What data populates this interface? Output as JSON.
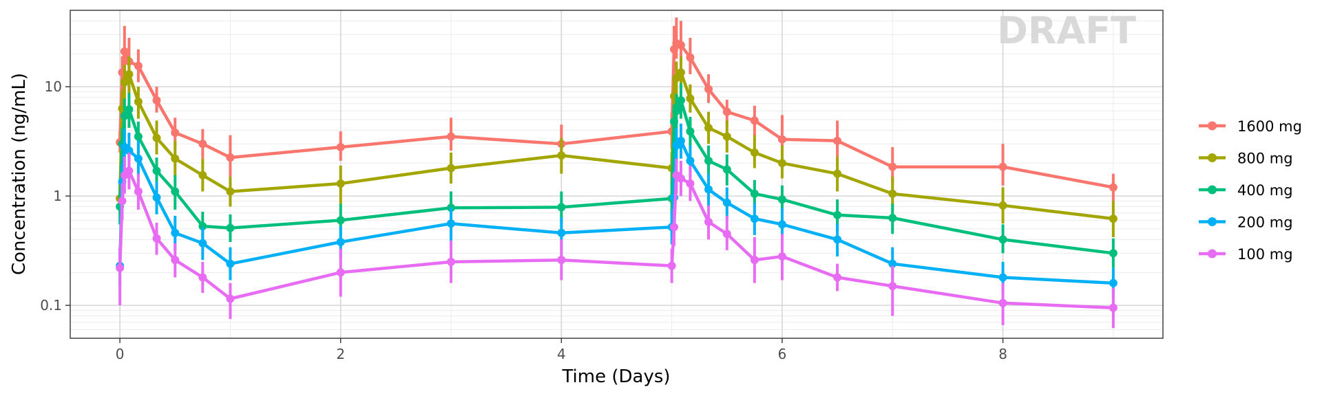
{
  "chart_data": {
    "type": "line",
    "xlabel": "Time (Days)",
    "ylabel": "Concentration (ng/mL)",
    "watermark": "DRAFT",
    "xlim": [
      -0.45,
      9.45
    ],
    "ylim": [
      0.05,
      50
    ],
    "yscale": "log",
    "x_ticks": [
      0,
      2,
      4,
      6,
      8
    ],
    "x_tick_labels": [
      "0",
      "2",
      "4",
      "6",
      "8"
    ],
    "y_ticks": [
      0.1,
      1,
      10
    ],
    "y_tick_labels": [
      "0.1",
      "1",
      "10"
    ],
    "grid": true,
    "legend_position": "right",
    "x": [
      0,
      0.021,
      0.042,
      0.083,
      0.167,
      0.333,
      0.5,
      0.75,
      1,
      2,
      3,
      4,
      5,
      5.021,
      5.042,
      5.083,
      5.167,
      5.333,
      5.5,
      5.75,
      6,
      6.5,
      7,
      8,
      9
    ],
    "series": [
      {
        "name": "1600 mg",
        "color": "#F8766D",
        "values": [
          3.1,
          13.5,
          21,
          17,
          15.5,
          7.5,
          3.8,
          3.0,
          2.25,
          2.8,
          3.5,
          3.0,
          3.9,
          22,
          25,
          24,
          18.5,
          9.5,
          5.9,
          4.9,
          3.3,
          3.2,
          1.85,
          1.85,
          1.2
        ],
        "err_low": [
          2.5,
          9,
          14,
          11,
          11,
          5.8,
          2.8,
          2.2,
          1.5,
          2.1,
          2.6,
          2.3,
          2.7,
          14,
          18,
          16,
          13,
          7.1,
          4.5,
          3.5,
          2.4,
          2.3,
          1.3,
          1.25,
          0.9
        ],
        "err_high": [
          3.9,
          19,
          36,
          28,
          22,
          10,
          5.2,
          4.1,
          3.6,
          3.9,
          5.2,
          4.5,
          5.8,
          36,
          43,
          40,
          28,
          13,
          7.6,
          6.7,
          5.5,
          4.9,
          2.8,
          3.0,
          1.6
        ]
      },
      {
        "name": "800 mg",
        "color": "#A3A500",
        "values": [
          0.95,
          6.3,
          11,
          13,
          7.3,
          3.4,
          2.2,
          1.55,
          1.1,
          1.3,
          1.8,
          2.35,
          1.8,
          8.2,
          12,
          13.5,
          7.8,
          4.2,
          3.5,
          2.5,
          2.0,
          1.6,
          1.05,
          0.82,
          0.62
        ],
        "err_low": [
          0.7,
          4.3,
          7.5,
          8.7,
          5.1,
          2.4,
          1.5,
          1.1,
          0.8,
          0.85,
          1.3,
          1.6,
          1.3,
          5.7,
          8.2,
          9.4,
          5.8,
          3.0,
          2.5,
          1.8,
          1.45,
          1.1,
          0.75,
          0.56,
          0.42
        ],
        "err_high": [
          1.3,
          9.2,
          16,
          19,
          10,
          4.9,
          3.2,
          2.2,
          1.5,
          1.9,
          2.5,
          3.4,
          2.5,
          12,
          17,
          19,
          10.5,
          5.9,
          4.9,
          3.6,
          2.9,
          2.3,
          1.5,
          1.2,
          0.9
        ]
      },
      {
        "name": "400 mg",
        "color": "#00BF7D",
        "values": [
          0.8,
          3.0,
          5.4,
          6.2,
          3.5,
          1.7,
          1.1,
          0.53,
          0.51,
          0.6,
          0.78,
          0.79,
          0.95,
          4.8,
          6.0,
          7.5,
          3.9,
          2.1,
          1.75,
          1.05,
          0.93,
          0.67,
          0.63,
          0.4,
          0.3
        ],
        "err_low": [
          0.55,
          2.0,
          3.7,
          4.2,
          2.4,
          1.25,
          0.75,
          0.38,
          0.38,
          0.43,
          0.56,
          0.55,
          0.66,
          3.3,
          4.1,
          5.1,
          2.8,
          1.5,
          1.25,
          0.78,
          0.7,
          0.48,
          0.45,
          0.3,
          0.22
        ],
        "err_high": [
          1.1,
          4.2,
          7.8,
          8.8,
          4.8,
          2.25,
          1.55,
          0.72,
          0.68,
          0.85,
          1.1,
          1.1,
          1.35,
          6.9,
          8.6,
          10.8,
          5.3,
          2.9,
          2.4,
          1.4,
          1.25,
          0.93,
          0.85,
          0.55,
          0.41
        ]
      },
      {
        "name": "200 mg",
        "color": "#00B0F6",
        "values": [
          0.23,
          1.35,
          2.8,
          2.6,
          2.2,
          0.97,
          0.46,
          0.37,
          0.24,
          0.38,
          0.56,
          0.46,
          0.52,
          0.97,
          2.9,
          3.2,
          2.1,
          1.15,
          0.87,
          0.62,
          0.55,
          0.4,
          0.24,
          0.18,
          0.16
        ],
        "err_low": [
          0.15,
          0.9,
          1.9,
          1.8,
          1.5,
          0.68,
          0.32,
          0.26,
          0.17,
          0.27,
          0.39,
          0.32,
          0.36,
          0.6,
          2.0,
          2.2,
          1.5,
          0.8,
          0.62,
          0.44,
          0.39,
          0.28,
          0.17,
          0.13,
          0.115
        ],
        "err_high": [
          0.33,
          1.95,
          4.1,
          3.8,
          3.2,
          1.35,
          0.66,
          0.52,
          0.34,
          0.53,
          0.79,
          0.64,
          0.74,
          1.5,
          4.2,
          4.6,
          2.9,
          1.6,
          1.2,
          0.86,
          0.78,
          0.56,
          0.34,
          0.25,
          0.22
        ]
      },
      {
        "name": "100 mg",
        "color": "#E76BF3",
        "values": [
          0.22,
          0.9,
          1.55,
          1.7,
          1.1,
          0.41,
          0.26,
          0.18,
          0.115,
          0.2,
          0.25,
          0.26,
          0.23,
          0.52,
          1.55,
          1.45,
          1.3,
          0.58,
          0.45,
          0.26,
          0.28,
          0.18,
          0.15,
          0.105,
          0.095
        ],
        "err_low": [
          0.1,
          0.6,
          1.05,
          1.15,
          0.75,
          0.29,
          0.18,
          0.13,
          0.075,
          0.12,
          0.16,
          0.17,
          0.16,
          0.35,
          1.05,
          1.0,
          0.9,
          0.4,
          0.32,
          0.16,
          0.17,
          0.135,
          0.08,
          0.066,
          0.062
        ],
        "err_high": [
          0.34,
          1.3,
          2.3,
          2.5,
          1.6,
          0.57,
          0.37,
          0.25,
          0.16,
          0.33,
          0.39,
          0.4,
          0.33,
          0.76,
          2.2,
          2.1,
          1.9,
          0.82,
          0.66,
          0.42,
          0.45,
          0.24,
          0.23,
          0.16,
          0.145
        ]
      }
    ]
  }
}
